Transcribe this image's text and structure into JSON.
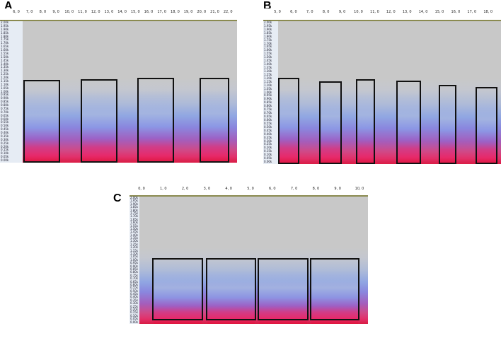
{
  "panels": [
    {
      "label": "A",
      "time_ticks": [
        "6, 0",
        "7, 0",
        "8, 0",
        "9, 0",
        "10, 0",
        "11, 0",
        "12, 0",
        "13, 0",
        "14, 0",
        "15, 0",
        "16, 0",
        "17, 0",
        "18, 0",
        "19, 0",
        "20, 0",
        "21, 0",
        "22, 0"
      ],
      "freq_ticks": [
        "2.00k",
        "1.95k",
        "1.90k",
        "1.85k",
        "1.80k",
        "1.75k",
        "1.70k",
        "1.65k",
        "1.60k",
        "1.55k",
        "1.50k",
        "1.45k",
        "1.40k",
        "1.35k",
        "1.30k",
        "1.25k",
        "1.20k",
        "1.15k",
        "1.10k",
        "1.05k",
        "1.00k",
        "0.95k",
        "0.90k",
        "0.85k",
        "0.80k",
        "0.75k",
        "0.70k",
        "0.65k",
        "0.60k",
        "0.55k",
        "0.50k",
        "0.45k",
        "0.40k",
        "0.35k",
        "0.30k",
        "0.25k",
        "0.20k",
        "0.15k",
        "0.10k",
        "0.05k",
        "0.00k"
      ]
    },
    {
      "label": "B",
      "time_ticks": [
        "5, 0",
        "6, 0",
        "7, 0",
        "8, 0",
        "9, 0",
        "10, 0",
        "11, 0",
        "12, 0",
        "13, 0",
        "14, 0",
        "15, 0",
        "16, 0",
        "17, 0",
        "18, 0"
      ],
      "freq_ticks": [
        "2.00k",
        "1.95k",
        "1.90k",
        "1.85k",
        "1.80k",
        "1.75k",
        "1.70k",
        "1.65k",
        "1.60k",
        "1.55k",
        "1.50k",
        "1.45k",
        "1.40k",
        "1.35k",
        "1.30k",
        "1.25k",
        "1.20k",
        "1.15k",
        "1.10k",
        "1.05k",
        "1.00k",
        "0.95k",
        "0.90k",
        "0.85k",
        "0.80k",
        "0.75k",
        "0.70k",
        "0.65k",
        "0.60k",
        "0.55k",
        "0.50k",
        "0.45k",
        "0.40k",
        "0.35k",
        "0.30k",
        "0.25k",
        "0.20k",
        "0.15k",
        "0.10k",
        "0.05k",
        "0.00k"
      ]
    },
    {
      "label": "C",
      "time_ticks": [
        "0, 0",
        "1, 0",
        "2, 0",
        "3, 0",
        "4, 0",
        "5, 0",
        "6, 0",
        "7, 0",
        "8, 0",
        "9, 0",
        "10, 0"
      ],
      "freq_ticks": [
        "2.00k",
        "1.95k",
        "1.90k",
        "1.85k",
        "1.80k",
        "1.75k",
        "1.70k",
        "1.65k",
        "1.60k",
        "1.55k",
        "1.50k",
        "1.45k",
        "1.40k",
        "1.35k",
        "1.30k",
        "1.25k",
        "1.20k",
        "1.15k",
        "1.10k",
        "1.05k",
        "1.00k",
        "0.95k",
        "0.90k",
        "0.85k",
        "0.80k",
        "0.75k",
        "0.70k",
        "0.65k",
        "0.60k",
        "0.55k",
        "0.50k",
        "0.45k",
        "0.40k",
        "0.35k",
        "0.30k",
        "0.25k",
        "0.20k",
        "0.15k",
        "0.10k",
        "0.05k",
        "0.00k"
      ]
    }
  ]
}
